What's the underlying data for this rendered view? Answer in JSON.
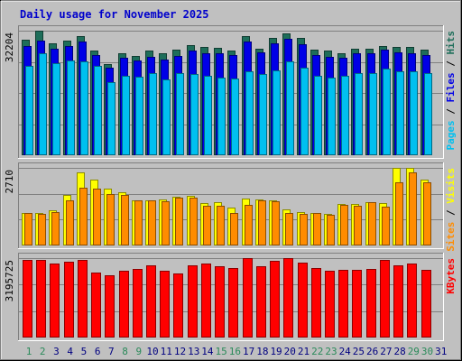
{
  "title": "Daily usage for November 2025",
  "colors": {
    "background": "#c0c0c0",
    "title": "#0000cc",
    "grid": "#808080",
    "hits": "#1e6e5a",
    "files": "#0000e6",
    "pages": "#00c0f0",
    "visits": "#ffff00",
    "sites": "#ff8c00",
    "kbytes": "#ff0000",
    "weekend_day": "#2a8a5a",
    "weekday": "#000080"
  },
  "chart_data": [
    {
      "type": "bar",
      "panel": "hits-files-pages",
      "categories": [
        "1",
        "2",
        "3",
        "4",
        "5",
        "6",
        "7",
        "8",
        "9",
        "10",
        "11",
        "12",
        "13",
        "14",
        "15",
        "16",
        "17",
        "18",
        "19",
        "20",
        "21",
        "22",
        "23",
        "24",
        "25",
        "26",
        "27",
        "28",
        "29",
        "30",
        "31"
      ],
      "weekend_days": [
        "1",
        "2",
        "8",
        "9",
        "15",
        "16",
        "22",
        "23",
        "29",
        "30"
      ],
      "ymax_label": "32204",
      "ylim": [
        0,
        32204
      ],
      "series_labels": [
        "Hits",
        "Files",
        "Pages"
      ],
      "series": [
        {
          "name": "Hits",
          "values": [
            29800,
            32204,
            28900,
            29700,
            30800,
            27000,
            23600,
            26300,
            25700,
            27000,
            26300,
            27200,
            28400,
            27900,
            27700,
            27000,
            30900,
            27600,
            30400,
            31500,
            30400,
            27300,
            27100,
            26400,
            27600,
            27600,
            28300,
            28100,
            28100,
            27300,
            null
          ]
        },
        {
          "name": "Files",
          "values": [
            28200,
            29600,
            27600,
            28200,
            29500,
            26000,
            22600,
            25200,
            24500,
            25500,
            24800,
            25600,
            27000,
            26300,
            26400,
            25800,
            29400,
            26600,
            29000,
            30100,
            28600,
            25900,
            25500,
            25100,
            26300,
            26400,
            27200,
            26700,
            26400,
            25800,
            null
          ]
        },
        {
          "name": "Pages",
          "values": [
            23200,
            26400,
            23700,
            24600,
            24200,
            23100,
            19000,
            20600,
            20400,
            21200,
            19600,
            21200,
            20900,
            20600,
            20000,
            19800,
            21800,
            21100,
            22000,
            24300,
            22600,
            20600,
            20100,
            20600,
            21300,
            21200,
            22300,
            21800,
            21700,
            21200,
            null
          ]
        }
      ]
    },
    {
      "type": "bar",
      "panel": "visits-sites",
      "categories": [
        "1",
        "2",
        "3",
        "4",
        "5",
        "6",
        "7",
        "8",
        "9",
        "10",
        "11",
        "12",
        "13",
        "14",
        "15",
        "16",
        "17",
        "18",
        "19",
        "20",
        "21",
        "22",
        "23",
        "24",
        "25",
        "26",
        "27",
        "28",
        "29",
        "30",
        "31"
      ],
      "ymax_label": "2710",
      "ylim": [
        0,
        2710
      ],
      "series_labels": [
        "Visits",
        "Sites"
      ],
      "series": [
        {
          "name": "Visits",
          "values": [
            1140,
            1140,
            1240,
            1780,
            2560,
            2310,
            1970,
            1870,
            1580,
            1580,
            1600,
            1700,
            1720,
            1490,
            1500,
            1310,
            1630,
            1600,
            1580,
            1250,
            1180,
            1120,
            1100,
            1440,
            1440,
            1510,
            1490,
            2710,
            2710,
            2300,
            null
          ]
        },
        {
          "name": "Sites",
          "values": [
            1120,
            1110,
            1180,
            1580,
            2010,
            1980,
            1800,
            1750,
            1580,
            1580,
            1550,
            1660,
            1680,
            1390,
            1390,
            1120,
            1420,
            1590,
            1540,
            1150,
            1100,
            1120,
            1080,
            1410,
            1400,
            1510,
            1360,
            2200,
            2560,
            2210,
            null
          ]
        }
      ]
    },
    {
      "type": "bar",
      "panel": "kbytes",
      "categories": [
        "1",
        "2",
        "3",
        "4",
        "5",
        "6",
        "7",
        "8",
        "9",
        "10",
        "11",
        "12",
        "13",
        "14",
        "15",
        "16",
        "17",
        "18",
        "19",
        "20",
        "21",
        "22",
        "23",
        "24",
        "25",
        "26",
        "27",
        "28",
        "29",
        "30",
        "31"
      ],
      "ymax_label": "3195725",
      "ylim": [
        0,
        3195725
      ],
      "series_labels": [
        "KBytes"
      ],
      "series": [
        {
          "name": "KBytes",
          "values": [
            3130000,
            3110000,
            2980000,
            3060000,
            3130000,
            2620000,
            2500000,
            2700000,
            2760000,
            2890000,
            2700000,
            2580000,
            2900000,
            2960000,
            2880000,
            2790000,
            3195725,
            2860000,
            3080000,
            3195725,
            3030000,
            2780000,
            2700000,
            2720000,
            2710000,
            2760000,
            3120000,
            2910000,
            2960000,
            2720000,
            null
          ]
        }
      ]
    }
  ]
}
